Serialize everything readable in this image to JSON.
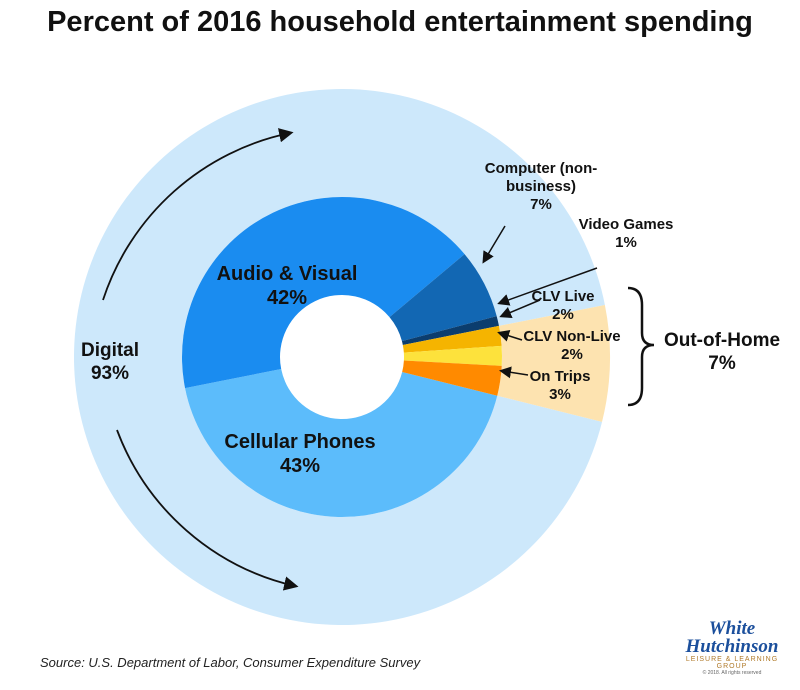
{
  "chart_data": {
    "type": "nested-donut",
    "title": "Percent of 2016 household entertainment spending",
    "inner": {
      "categories": [
        "Cellular Phones",
        "Audio & Visual",
        "Computer (non-business)",
        "Video Games",
        "CLV Live",
        "CLV Non-Live",
        "On Trips"
      ],
      "values": [
        43,
        42,
        7,
        1,
        2,
        2,
        3
      ],
      "value_labels": [
        "43%",
        "42%",
        "7%",
        "1%",
        "2%",
        "2%",
        "3%"
      ],
      "colors": [
        "#5cbcfb",
        "#1a8cf0",
        "#1267b3",
        "#0b3d6e",
        "#f5b400",
        "#fde23c",
        "#ff8a00"
      ]
    },
    "outer": {
      "categories": [
        "Digital",
        "Out-of-Home"
      ],
      "values": [
        93,
        7
      ],
      "value_labels": [
        "93%",
        "7%"
      ],
      "colors": [
        "#cde8fb",
        "#fde3b0"
      ]
    },
    "source": "Source: U.S. Department of Labor, Consumer Expenditure Survey"
  },
  "logo": {
    "line1": "White",
    "line2": "Hutchinson",
    "tagline": "LEISURE & LEARNING GROUP",
    "copyright": "© 2018. All rights reserved"
  }
}
